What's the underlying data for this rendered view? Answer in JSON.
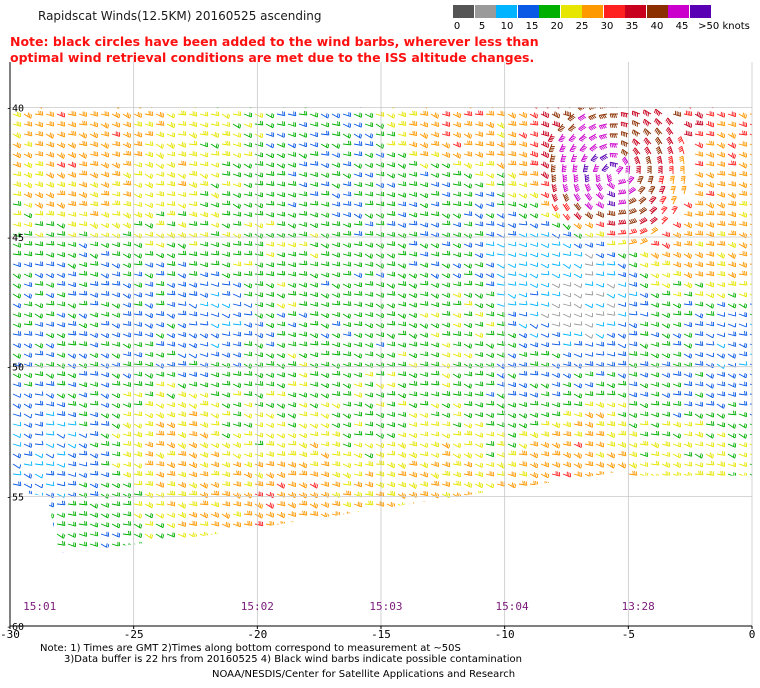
{
  "header": {
    "title": "Rapidscat Winds(12.5KM) 20160525 ascending",
    "note_line1": "Note: black circles have been added to the wind barbs, wherever less than",
    "note_line2": "optimal wind retrieval conditions are met due to the ISS altitude changes."
  },
  "colorbar": {
    "labels": [
      "0",
      "5",
      "10",
      "15",
      "20",
      "25",
      "30",
      "35",
      "40",
      "45",
      ">50 knots"
    ],
    "colors": [
      "#555555",
      "#9a9a9a",
      "#00b4ff",
      "#0a5ae6",
      "#00b000",
      "#e6e600",
      "#ff9900",
      "#ff2020",
      "#c8001e",
      "#8b2f00",
      "#cc00cc",
      "#5a00b4"
    ]
  },
  "footer": {
    "line1": "Note: 1) Times are GMT  2)Times along bottom correspond to measurement at ~50S",
    "line2": "3)Data buffer is 22 hrs from 20160525  4) Black wind barbs indicate possible contamination",
    "line3": "NOAA/NESDIS/Center for Satellite Applications and Research"
  },
  "chart_data": {
    "type": "scatter",
    "description_kind": "wind barb map",
    "x_axis": {
      "ticks": [
        -30,
        -25,
        -20,
        -15,
        -10,
        -5,
        0
      ],
      "tick_labels": [
        "-30",
        "-25",
        "-20",
        "-15",
        "-10",
        "-5",
        "0"
      ],
      "range": [
        -30,
        0
      ]
    },
    "y_axis": {
      "ticks": [
        -40,
        -45,
        -50,
        -55,
        -60
      ],
      "tick_labels": [
        "-40",
        "-45",
        "-50",
        "-55",
        "-60"
      ],
      "range": [
        -60,
        -40
      ]
    },
    "grid": true,
    "time_labels": [
      {
        "lon": -28.8,
        "text": "15:01"
      },
      {
        "lon": -20.0,
        "text": "15:02"
      },
      {
        "lon": -14.8,
        "text": "15:03"
      },
      {
        "lon": -9.7,
        "text": "15:04"
      },
      {
        "lon": -4.6,
        "text": "13:28"
      }
    ],
    "swath_polygon": [
      [
        -30,
        -40
      ],
      [
        0,
        -40
      ],
      [
        0,
        -54.2
      ],
      [
        -5,
        -54.2
      ],
      [
        -5,
        -54.0
      ],
      [
        -22,
        -56.5
      ],
      [
        -28,
        -57.2
      ],
      [
        -28.5,
        -55.0
      ],
      [
        -30,
        -54.8
      ]
    ],
    "speed_regions": [
      {
        "lon": -26.5,
        "lat": -41.5,
        "speed_kt": 30
      },
      {
        "lon": -24.0,
        "lat": -43.0,
        "speed_kt": 25
      },
      {
        "lon": -20.0,
        "lat": -45.5,
        "speed_kt": 22
      },
      {
        "lon": -17.0,
        "lat": -42.0,
        "speed_kt": 18
      },
      {
        "lon": -13.0,
        "lat": -43.5,
        "speed_kt": 18
      },
      {
        "lon": -12.5,
        "lat": -40.8,
        "speed_kt": 30
      },
      {
        "lon": -6.0,
        "lat": -42.5,
        "speed_kt": 50
      },
      {
        "lon": -4.0,
        "lat": -41.5,
        "speed_kt": 40
      },
      {
        "lon": -2.0,
        "lat": -42.5,
        "speed_kt": 30
      },
      {
        "lon": -1.0,
        "lat": -45.0,
        "speed_kt": 28
      },
      {
        "lon": -7.5,
        "lat": -47.0,
        "speed_kt": 8
      },
      {
        "lon": -9.0,
        "lat": -46.5,
        "speed_kt": 12
      },
      {
        "lon": -26.0,
        "lat": -47.5,
        "speed_kt": 18
      },
      {
        "lon": -28.0,
        "lat": -48.5,
        "speed_kt": 18
      },
      {
        "lon": -22.0,
        "lat": -48.0,
        "speed_kt": 15
      },
      {
        "lon": -16.0,
        "lat": -48.0,
        "speed_kt": 20
      },
      {
        "lon": -12.0,
        "lat": -48.5,
        "speed_kt": 22
      },
      {
        "lon": -20.0,
        "lat": -51.5,
        "speed_kt": 22
      },
      {
        "lon": -15.0,
        "lat": -52.0,
        "speed_kt": 22
      },
      {
        "lon": -9.0,
        "lat": -50.5,
        "speed_kt": 18
      },
      {
        "lon": -3.0,
        "lat": -51.0,
        "speed_kt": 18
      },
      {
        "lon": -1.0,
        "lat": -49.5,
        "speed_kt": 15
      },
      {
        "lon": -23.5,
        "lat": -53.5,
        "speed_kt": 28
      },
      {
        "lon": -19.0,
        "lat": -55.0,
        "speed_kt": 30
      },
      {
        "lon": -14.0,
        "lat": -54.5,
        "speed_kt": 28
      },
      {
        "lon": -7.5,
        "lat": -53.5,
        "speed_kt": 30
      },
      {
        "lon": -3.0,
        "lat": -53.0,
        "speed_kt": 25
      },
      {
        "lon": -28.5,
        "lat": -54.0,
        "speed_kt": 14
      },
      {
        "lon": -27.0,
        "lat": -55.5,
        "speed_kt": 20
      }
    ]
  }
}
